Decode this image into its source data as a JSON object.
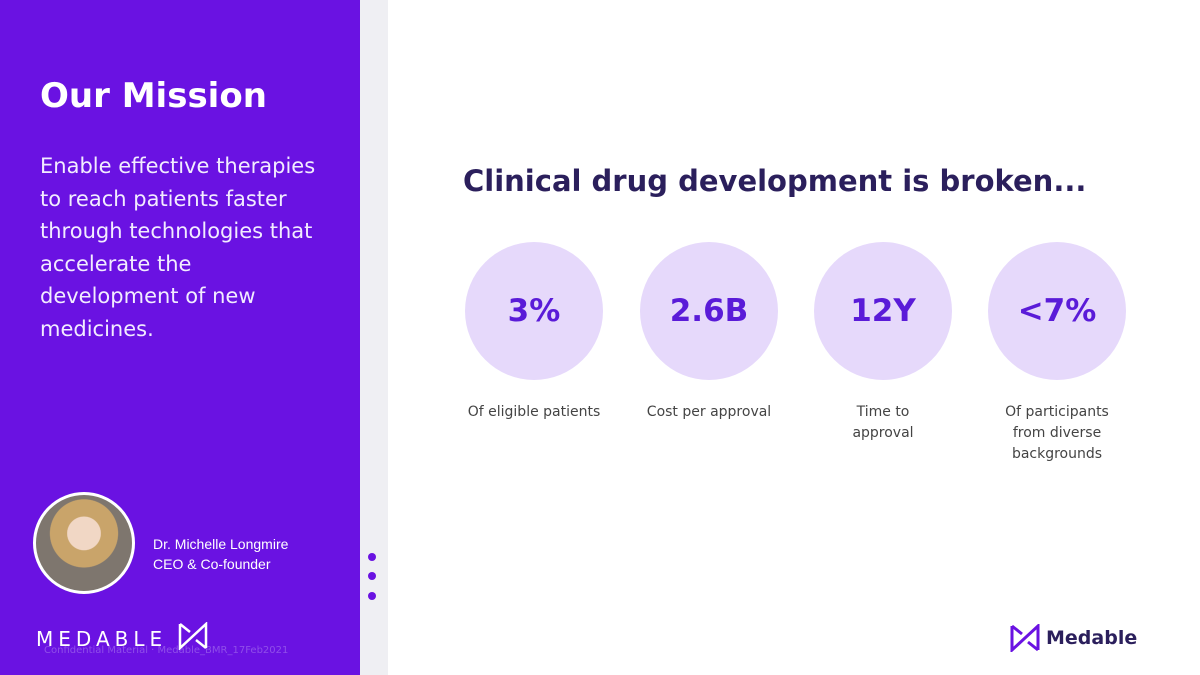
{
  "sidebar": {
    "title": "Our Mission",
    "body": "Enable effective therapies to reach patients faster through technologies that accelerate the development of new medicines.",
    "person": {
      "name": "Dr. Michelle Longmire",
      "role": "CEO & Co-founder"
    },
    "brand": "MEDABLE",
    "footer": "Confidential Material · Medable_BMR_17Feb2021"
  },
  "main": {
    "headline": "Clinical drug development is broken...",
    "stats": [
      {
        "value": "3%",
        "label": "Of eligible patients"
      },
      {
        "value": "2.6B",
        "label": "Cost per approval"
      },
      {
        "value": "12Y",
        "label": "Time to approval"
      },
      {
        "value": "<7%",
        "label": "Of participants from diverse backgrounds"
      }
    ],
    "logo": "Medable"
  }
}
